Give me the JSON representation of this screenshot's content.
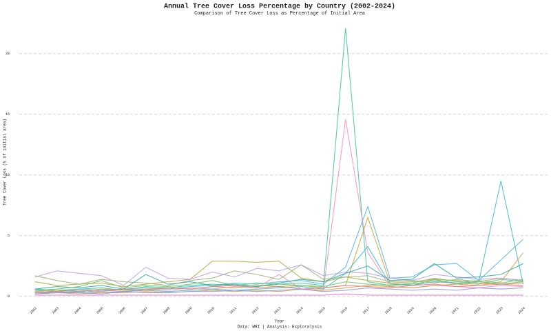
{
  "chart_data": {
    "type": "line",
    "title": "Annual Tree Cover Loss Percentage by Country (2002-2024)",
    "subtitle": "Comparison of Tree Cover Loss as Percentage of Initial Area",
    "x_label": "Year",
    "y_label": "Tree Cover Loss (% of initial area)",
    "caption": "Data: WRI | Analysis: Exploralysis",
    "x": [
      2002,
      2003,
      2004,
      2005,
      2006,
      2007,
      2008,
      2009,
      2010,
      2011,
      2012,
      2013,
      2014,
      2015,
      2016,
      2017,
      2018,
      2019,
      2020,
      2021,
      2022,
      2023,
      2024
    ],
    "xlim": [
      2001.3,
      2025.1
    ],
    "xticks": [
      2002,
      2003,
      2004,
      2005,
      2006,
      2007,
      2008,
      2009,
      2010,
      2011,
      2012,
      2013,
      2014,
      2015,
      2016,
      2017,
      2018,
      2019,
      2020,
      2021,
      2022,
      2023,
      2024
    ],
    "ylim": [
      -0.3,
      22.6
    ],
    "yticks": [
      0,
      5,
      10,
      15,
      20
    ],
    "grid": true,
    "series": [
      {
        "color": "#3ec49a",
        "values": [
          0.6,
          0.5,
          0.6,
          0.7,
          0.5,
          0.8,
          0.7,
          0.9,
          1.0,
          0.9,
          0.8,
          1.0,
          1.1,
          0.9,
          22.1,
          1.2,
          0.9,
          1.0,
          1.3,
          1.1,
          1.0,
          1.4,
          1.2
        ]
      },
      {
        "color": "#f08cc8",
        "values": [
          0.3,
          0.4,
          0.3,
          0.5,
          0.4,
          0.6,
          0.5,
          0.7,
          0.6,
          0.8,
          0.7,
          1.8,
          0.6,
          0.5,
          14.6,
          3.6,
          0.8,
          0.7,
          0.9,
          0.8,
          0.7,
          0.9,
          0.8
        ]
      },
      {
        "color": "#4fb3e0",
        "values": [
          0.5,
          0.4,
          0.6,
          0.5,
          0.6,
          0.7,
          0.6,
          0.8,
          0.9,
          1.1,
          1.0,
          1.2,
          1.3,
          1.0,
          2.4,
          7.4,
          1.5,
          1.6,
          2.6,
          2.7,
          1.3,
          3.0,
          4.7
        ]
      },
      {
        "color": "#c4a53a",
        "values": [
          0.4,
          0.5,
          0.4,
          0.6,
          0.5,
          0.6,
          0.7,
          0.6,
          0.8,
          0.7,
          0.9,
          0.8,
          0.9,
          0.7,
          0.9,
          6.5,
          1.1,
          0.9,
          1.4,
          1.0,
          1.2,
          1.5,
          1.3
        ]
      },
      {
        "color": "#3bb8d0",
        "values": [
          0.3,
          0.3,
          0.4,
          0.3,
          0.4,
          0.5,
          0.4,
          0.5,
          0.6,
          0.5,
          0.6,
          0.7,
          0.8,
          0.6,
          1.9,
          4.1,
          1.0,
          0.9,
          1.2,
          1.1,
          1.2,
          9.5,
          1.0
        ]
      },
      {
        "color": "#d9a040",
        "values": [
          0.2,
          0.3,
          0.2,
          0.3,
          0.3,
          0.4,
          0.3,
          0.4,
          0.5,
          0.4,
          0.5,
          0.4,
          0.6,
          0.5,
          0.7,
          0.9,
          0.8,
          0.7,
          0.9,
          1.0,
          0.9,
          1.2,
          3.6
        ]
      },
      {
        "color": "#b5a83a",
        "values": [
          1.2,
          0.9,
          1.0,
          1.1,
          0.8,
          1.0,
          1.2,
          1.4,
          2.9,
          2.9,
          2.8,
          2.9,
          1.5,
          1.2,
          1.6,
          1.3,
          1.1,
          1.2,
          1.4,
          1.3,
          1.1,
          1.0,
          1.2
        ]
      },
      {
        "color": "#b89ce8",
        "values": [
          1.6,
          2.1,
          1.9,
          1.7,
          0.9,
          2.4,
          1.5,
          1.4,
          2.0,
          1.6,
          2.3,
          2.1,
          2.6,
          1.7,
          2.0,
          1.9,
          1.5,
          1.3,
          1.8,
          1.6,
          1.4,
          1.5,
          1.3
        ]
      },
      {
        "color": "#9bb07a",
        "values": [
          1.7,
          1.3,
          1.0,
          1.4,
          1.2,
          1.1,
          0.9,
          1.3,
          1.5,
          2.1,
          1.8,
          1.4,
          2.6,
          1.4,
          1.6,
          1.7,
          1.2,
          1.3,
          1.1,
          1.4,
          1.2,
          1.0,
          1.1
        ]
      },
      {
        "color": "#2fa8a0",
        "values": [
          0.6,
          0.8,
          0.7,
          0.9,
          0.6,
          1.8,
          1.0,
          1.2,
          0.9,
          1.0,
          0.8,
          1.1,
          1.4,
          1.2,
          1.9,
          2.5,
          1.3,
          1.4,
          2.7,
          1.5,
          1.6,
          1.8,
          2.7
        ]
      },
      {
        "color": "#6bc46a",
        "values": [
          0.5,
          0.6,
          0.8,
          1.3,
          0.7,
          0.9,
          0.8,
          1.0,
          1.3,
          0.9,
          1.1,
          1.0,
          0.9,
          0.8,
          1.2,
          1.0,
          0.9,
          1.1,
          1.5,
          1.2,
          1.3,
          1.1,
          1.4
        ]
      },
      {
        "color": "#e07c7c",
        "values": [
          0.3,
          0.4,
          0.5,
          0.4,
          0.6,
          0.5,
          0.7,
          0.6,
          0.8,
          0.9,
          0.7,
          0.8,
          0.6,
          0.7,
          0.9,
          0.8,
          0.7,
          0.9,
          1.0,
          0.8,
          0.9,
          1.0,
          0.9
        ]
      },
      {
        "color": "#8f8fe0",
        "values": [
          0.2,
          0.3,
          0.3,
          0.2,
          0.4,
          0.3,
          0.3,
          0.4,
          0.4,
          0.5,
          0.4,
          0.5,
          0.6,
          0.4,
          0.5,
          0.7,
          0.6,
          0.5,
          0.6,
          0.5,
          0.7,
          0.6,
          0.7
        ]
      },
      {
        "color": "#e060c0",
        "values": [
          0.1,
          0.1,
          0.1,
          0.1,
          0.1,
          0.1,
          0.1,
          0.1,
          0.1,
          0.1,
          0.1,
          0.1,
          0.1,
          0.1,
          0.2,
          0.1,
          0.1,
          0.1,
          0.1,
          0.1,
          0.1,
          0.1,
          0.1
        ]
      }
    ]
  }
}
